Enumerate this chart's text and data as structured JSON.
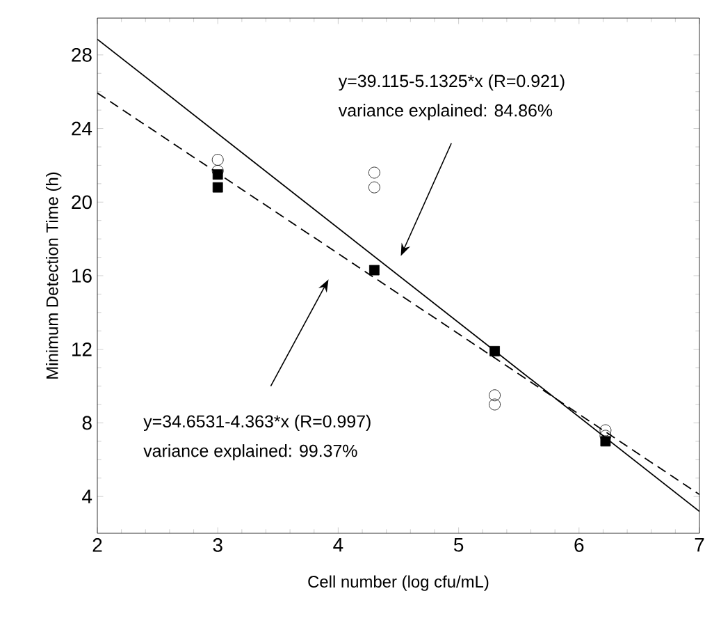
{
  "chart_data": {
    "type": "scatter",
    "xlabel": "Cell number (log cfu/mL)",
    "ylabel": "Minimum Detection Time (h)",
    "xlim": [
      2,
      7
    ],
    "ylim": [
      2,
      30
    ],
    "xticks": [
      2,
      3,
      4,
      5,
      6,
      7
    ],
    "yticks": [
      4,
      8,
      12,
      16,
      20,
      24,
      28
    ],
    "series": [
      {
        "marker": "circle",
        "color": "#000000",
        "x": [
          3.0,
          3.0,
          4.3,
          4.3,
          5.3,
          5.3,
          6.22,
          6.22
        ],
        "values": [
          22.3,
          21.7,
          21.6,
          20.8,
          9.5,
          9.0,
          7.6,
          7.3
        ]
      },
      {
        "marker": "square",
        "color": "#000000",
        "x": [
          3.0,
          3.0,
          4.3,
          5.3,
          6.22
        ],
        "values": [
          21.5,
          20.8,
          16.3,
          11.9,
          7.0
        ]
      },
      {
        "type": "line",
        "line_style": "solid",
        "color": "#000000",
        "x": [
          2,
          7
        ],
        "values": [
          28.85,
          3.19
        ]
      },
      {
        "type": "line",
        "line_style": "dashed",
        "color": "#000000",
        "x": [
          2,
          7
        ],
        "values": [
          25.93,
          4.11
        ]
      }
    ],
    "annotations": [
      "y=39.115-5.1325*x (R=0.921)",
      "variance explained: 84.86%",
      "y=34.6531-4.363*x (R=0.997)",
      "variance explained: 99.37%"
    ]
  }
}
